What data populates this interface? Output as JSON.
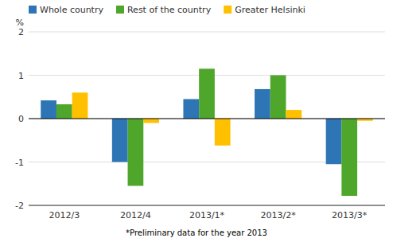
{
  "chart_data": {
    "type": "bar",
    "categories": [
      "2012/3",
      "2012/4",
      "2013/1*",
      "2013/2*",
      "2013/3*"
    ],
    "series": [
      {
        "name": "Whole country",
        "color": "#2E75B6",
        "values": [
          0.42,
          -1.0,
          0.45,
          0.68,
          -1.05
        ]
      },
      {
        "name": "Rest of the country",
        "color": "#4EA72A",
        "values": [
          0.33,
          -1.55,
          1.15,
          1.0,
          -1.78
        ]
      },
      {
        "name": "Greater Helsinki",
        "color": "#FFC000",
        "values": [
          0.6,
          -0.1,
          -0.62,
          0.2,
          -0.05
        ]
      }
    ],
    "ylabel": "%",
    "ylim": [
      -2,
      2
    ],
    "yticks": [
      -2,
      -1,
      0,
      1,
      2
    ],
    "grid": true,
    "legend": "upper left",
    "annotations": [
      "*Preliminary data for the year 2013"
    ]
  }
}
